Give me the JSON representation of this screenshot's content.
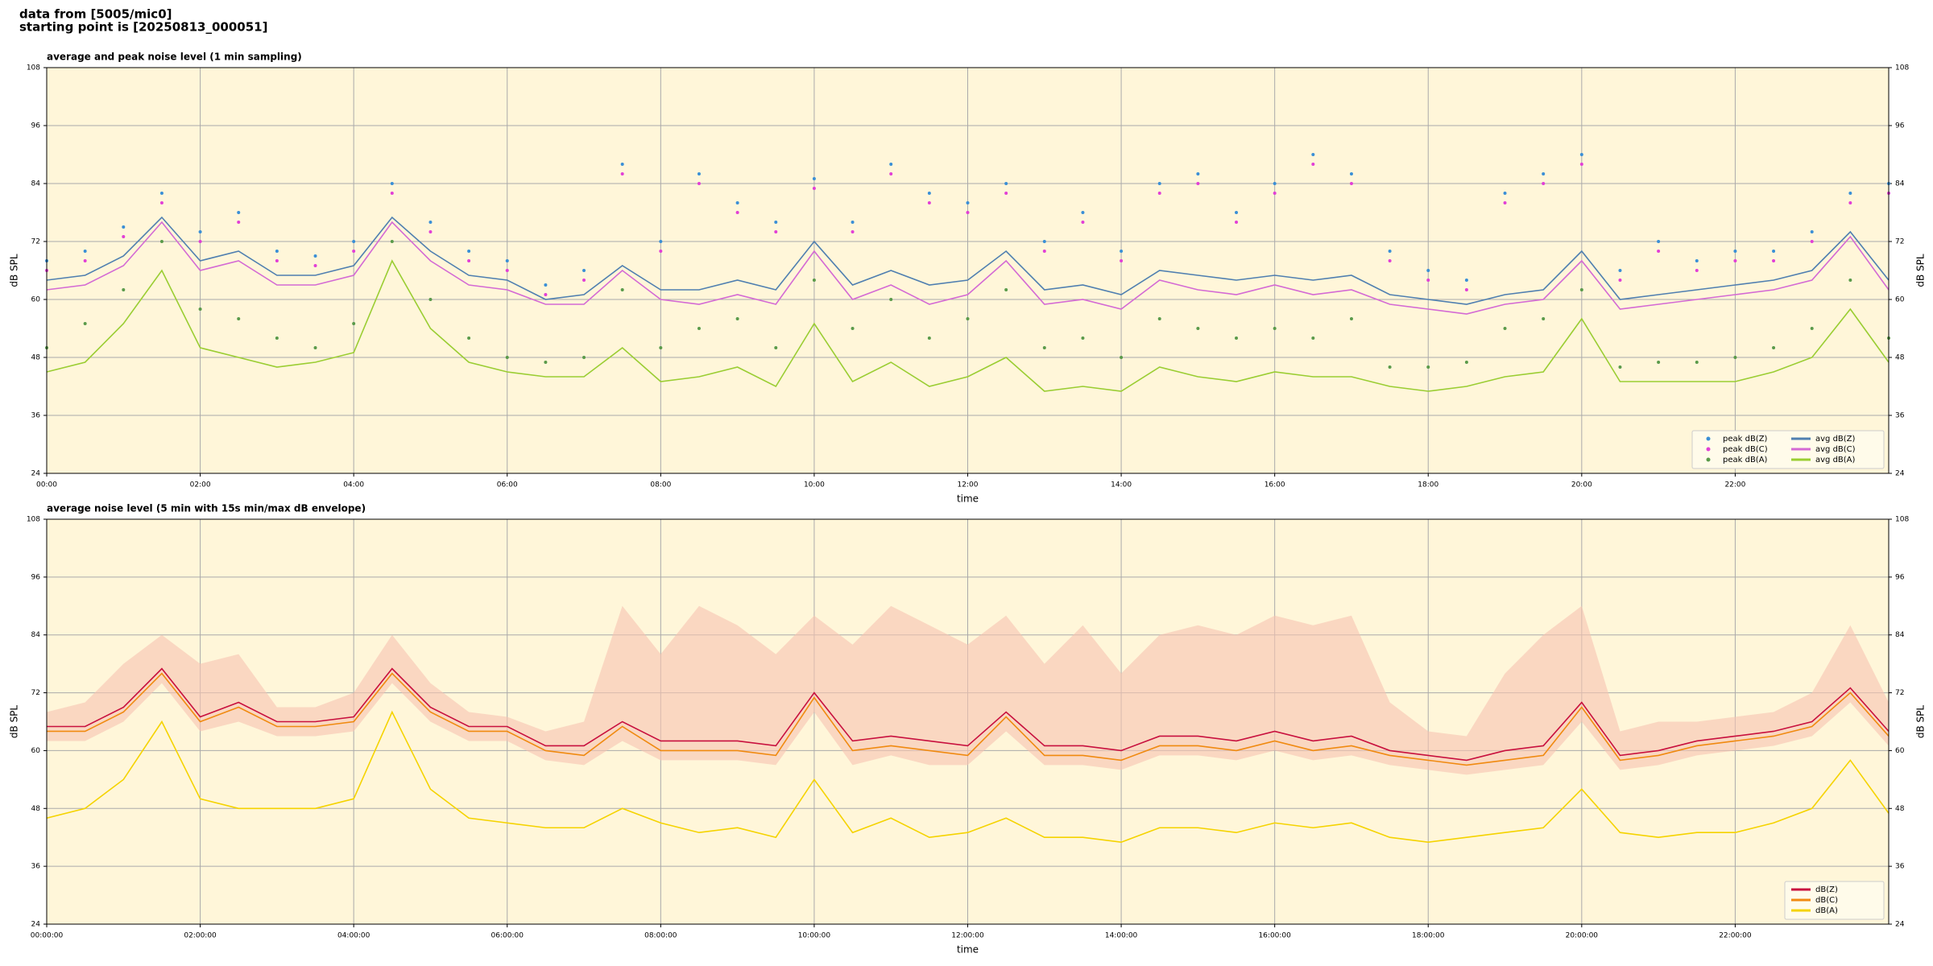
{
  "header": {
    "line1": "data from [5005/mic0]",
    "line2": "starting point is [20250813_000051]"
  },
  "chart_data": [
    {
      "type": "line",
      "title": "average and peak noise level (1 min sampling)",
      "xlabel": "time",
      "ylabel": "dB SPL",
      "facecolor": "#fff6d9",
      "grid": true,
      "legend": "lower right",
      "legend_columns": 2,
      "xlim": [
        0,
        24
      ],
      "ylim": [
        24,
        108
      ],
      "xticks": [
        {
          "value": 0,
          "label": "00:00"
        },
        {
          "value": 2,
          "label": "02:00"
        },
        {
          "value": 4,
          "label": "04:00"
        },
        {
          "value": 6,
          "label": "06:00"
        },
        {
          "value": 8,
          "label": "08:00"
        },
        {
          "value": 10,
          "label": "10:00"
        },
        {
          "value": 12,
          "label": "12:00"
        },
        {
          "value": 14,
          "label": "14:00"
        },
        {
          "value": 16,
          "label": "16:00"
        },
        {
          "value": 18,
          "label": "18:00"
        },
        {
          "value": 20,
          "label": "20:00"
        },
        {
          "value": 22,
          "label": "22:00"
        }
      ],
      "yticks": [
        24,
        36,
        48,
        60,
        72,
        84,
        96,
        108
      ],
      "x": [
        0,
        0.5,
        1,
        1.5,
        2,
        2.5,
        3,
        3.5,
        4,
        4.5,
        5,
        5.5,
        6,
        6.5,
        7,
        7.5,
        8,
        8.5,
        9,
        9.5,
        10,
        10.5,
        11,
        11.5,
        12,
        12.5,
        13,
        13.5,
        14,
        14.5,
        15,
        15.5,
        16,
        16.5,
        17,
        17.5,
        18,
        18.5,
        19,
        19.5,
        20,
        20.5,
        21,
        21.5,
        22,
        22.5,
        23,
        23.5,
        24
      ],
      "series": [
        {
          "name": "peak dB(Z)",
          "kind": "scatter",
          "color": "#3a8fd6",
          "values": [
            68,
            70,
            75,
            82,
            74,
            78,
            70,
            69,
            72,
            84,
            76,
            70,
            68,
            63,
            66,
            88,
            72,
            86,
            80,
            76,
            85,
            76,
            88,
            82,
            80,
            84,
            72,
            78,
            70,
            84,
            86,
            78,
            84,
            90,
            86,
            70,
            66,
            64,
            82,
            86,
            90,
            66,
            72,
            68,
            70,
            70,
            74,
            82,
            84
          ]
        },
        {
          "name": "peak dB(C)",
          "kind": "scatter",
          "color": "#e23fd6",
          "values": [
            66,
            68,
            73,
            80,
            72,
            76,
            68,
            67,
            70,
            82,
            74,
            68,
            66,
            61,
            64,
            86,
            70,
            84,
            78,
            74,
            83,
            74,
            86,
            80,
            78,
            82,
            70,
            76,
            68,
            82,
            84,
            76,
            82,
            88,
            84,
            68,
            64,
            62,
            80,
            84,
            88,
            64,
            70,
            66,
            68,
            68,
            72,
            80,
            82
          ]
        },
        {
          "name": "peak dB(A)",
          "kind": "scatter",
          "color": "#5a9a4a",
          "values": [
            50,
            55,
            62,
            72,
            58,
            56,
            52,
            50,
            55,
            72,
            60,
            52,
            48,
            47,
            48,
            62,
            50,
            54,
            56,
            50,
            64,
            54,
            60,
            52,
            56,
            62,
            50,
            52,
            48,
            56,
            54,
            52,
            54,
            52,
            56,
            46,
            46,
            47,
            54,
            56,
            62,
            46,
            47,
            47,
            48,
            50,
            54,
            64,
            52
          ]
        },
        {
          "name": "avg dB(Z)",
          "kind": "line",
          "color": "#4f7fb0",
          "values": [
            64,
            65,
            69,
            77,
            68,
            70,
            65,
            65,
            67,
            77,
            70,
            65,
            64,
            60,
            61,
            67,
            62,
            62,
            64,
            62,
            72,
            63,
            66,
            63,
            64,
            70,
            62,
            63,
            61,
            66,
            65,
            64,
            65,
            64,
            65,
            61,
            60,
            59,
            61,
            62,
            70,
            60,
            61,
            62,
            63,
            64,
            66,
            74,
            64
          ]
        },
        {
          "name": "avg dB(C)",
          "kind": "line",
          "color": "#d46ad4",
          "values": [
            62,
            63,
            67,
            76,
            66,
            68,
            63,
            63,
            65,
            76,
            68,
            63,
            62,
            59,
            59,
            66,
            60,
            59,
            61,
            59,
            70,
            60,
            63,
            59,
            61,
            68,
            59,
            60,
            58,
            64,
            62,
            61,
            63,
            61,
            62,
            59,
            58,
            57,
            59,
            60,
            68,
            58,
            59,
            60,
            61,
            62,
            64,
            73,
            62
          ]
        },
        {
          "name": "avg dB(A)",
          "kind": "line",
          "color": "#9acd32",
          "values": [
            45,
            47,
            55,
            66,
            50,
            48,
            46,
            47,
            49,
            68,
            54,
            47,
            45,
            44,
            44,
            50,
            43,
            44,
            46,
            42,
            55,
            43,
            47,
            42,
            44,
            48,
            41,
            42,
            41,
            46,
            44,
            43,
            45,
            44,
            44,
            42,
            41,
            42,
            44,
            45,
            56,
            43,
            43,
            43,
            43,
            45,
            48,
            58,
            47
          ]
        }
      ]
    },
    {
      "type": "line",
      "title": "average noise level (5 min with 15s min/max dB envelope)",
      "xlabel": "time",
      "ylabel": "dB SPL",
      "facecolor": "#fff6d9",
      "grid": true,
      "legend": "lower right",
      "legend_columns": 1,
      "xlim": [
        0,
        24
      ],
      "ylim": [
        24,
        108
      ],
      "xticks": [
        {
          "value": 0,
          "label": "00:00:00"
        },
        {
          "value": 2,
          "label": "02:00:00"
        },
        {
          "value": 4,
          "label": "04:00:00"
        },
        {
          "value": 6,
          "label": "06:00:00"
        },
        {
          "value": 8,
          "label": "08:00:00"
        },
        {
          "value": 10,
          "label": "10:00:00"
        },
        {
          "value": 12,
          "label": "12:00:00"
        },
        {
          "value": 14,
          "label": "14:00:00"
        },
        {
          "value": 16,
          "label": "16:00:00"
        },
        {
          "value": 18,
          "label": "18:00:00"
        },
        {
          "value": 20,
          "label": "20:00:00"
        },
        {
          "value": 22,
          "label": "22:00:00"
        }
      ],
      "yticks": [
        24,
        36,
        48,
        60,
        72,
        84,
        96,
        108
      ],
      "x": [
        0,
        0.5,
        1,
        1.5,
        2,
        2.5,
        3,
        3.5,
        4,
        4.5,
        5,
        5.5,
        6,
        6.5,
        7,
        7.5,
        8,
        8.5,
        9,
        9.5,
        10,
        10.5,
        11,
        11.5,
        12,
        12.5,
        13,
        13.5,
        14,
        14.5,
        15,
        15.5,
        16,
        16.5,
        17,
        17.5,
        18,
        18.5,
        19,
        19.5,
        20,
        20.5,
        21,
        21.5,
        22,
        22.5,
        23,
        23.5,
        24
      ],
      "envelope": {
        "color": "#f6c3b0",
        "min": [
          62,
          62,
          66,
          74,
          64,
          66,
          63,
          63,
          64,
          74,
          66,
          62,
          62,
          58,
          57,
          62,
          58,
          58,
          58,
          57,
          68,
          57,
          59,
          57,
          57,
          64,
          57,
          57,
          56,
          59,
          59,
          58,
          60,
          58,
          59,
          57,
          56,
          55,
          56,
          57,
          66,
          56,
          57,
          59,
          60,
          61,
          63,
          70,
          61
        ],
        "max": [
          68,
          70,
          78,
          84,
          78,
          80,
          69,
          69,
          72,
          84,
          74,
          68,
          67,
          64,
          66,
          90,
          80,
          90,
          86,
          80,
          88,
          82,
          90,
          86,
          82,
          88,
          78,
          86,
          76,
          84,
          86,
          84,
          88,
          86,
          88,
          70,
          64,
          63,
          76,
          84,
          90,
          64,
          66,
          66,
          67,
          68,
          72,
          86,
          70
        ]
      },
      "series": [
        {
          "name": "dB(Z)",
          "kind": "line",
          "color": "#c8103e",
          "values": [
            65,
            65,
            69,
            77,
            67,
            70,
            66,
            66,
            67,
            77,
            69,
            65,
            65,
            61,
            61,
            66,
            62,
            62,
            62,
            61,
            72,
            62,
            63,
            62,
            61,
            68,
            61,
            61,
            60,
            63,
            63,
            62,
            64,
            62,
            63,
            60,
            59,
            58,
            60,
            61,
            70,
            59,
            60,
            62,
            63,
            64,
            66,
            73,
            64
          ]
        },
        {
          "name": "dB(C)",
          "kind": "line",
          "color": "#f08a10",
          "values": [
            64,
            64,
            68,
            76,
            66,
            69,
            65,
            65,
            66,
            76,
            68,
            64,
            64,
            60,
            59,
            65,
            60,
            60,
            60,
            59,
            71,
            60,
            61,
            60,
            59,
            67,
            59,
            59,
            58,
            61,
            61,
            60,
            62,
            60,
            61,
            59,
            58,
            57,
            58,
            59,
            69,
            58,
            59,
            61,
            62,
            63,
            65,
            72,
            63
          ]
        },
        {
          "name": "dB(A)",
          "kind": "line",
          "color": "#f5d300",
          "values": [
            46,
            48,
            54,
            66,
            50,
            48,
            48,
            48,
            50,
            68,
            52,
            46,
            45,
            44,
            44,
            48,
            45,
            43,
            44,
            42,
            54,
            43,
            46,
            42,
            43,
            46,
            42,
            42,
            41,
            44,
            44,
            43,
            45,
            44,
            45,
            42,
            41,
            42,
            43,
            44,
            52,
            43,
            42,
            43,
            43,
            45,
            48,
            58,
            47
          ]
        }
      ]
    }
  ]
}
